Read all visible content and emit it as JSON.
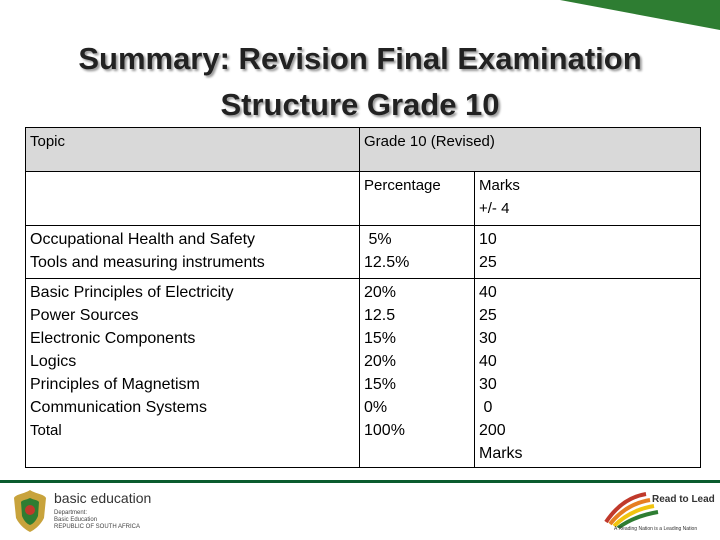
{
  "title": {
    "line1": "Summary: Revision Final Examination",
    "line2": "Structure Grade 10"
  },
  "table": {
    "topic_header": "Topic",
    "grade_header": "Grade 10 (Revised)",
    "percentage_header": "Percentage",
    "marks_header_line1": "Marks",
    "marks_header_line2": "+/- 4",
    "group1": {
      "topics": [
        "Occupational Health and Safety",
        "Tools and measuring instruments"
      ],
      "percentages": [
        " 5%",
        "12.5%"
      ],
      "marks": [
        "10",
        "25"
      ]
    },
    "group2": {
      "topics": [
        "Basic Principles of Electricity",
        "Power Sources",
        "Electronic Components",
        "Logics",
        "Principles of Magnetism",
        "Communication Systems"
      ],
      "total_label": "Total",
      "percentages": [
        "20%",
        "12.5",
        "15%",
        "20%",
        "15%",
        "0%",
        "100%"
      ],
      "marks": [
        "40",
        "25",
        "30",
        "40",
        "30",
        " 0",
        "200",
        "Marks"
      ]
    }
  },
  "footer": {
    "left_logo_name": "basic education",
    "left_logo_sub1": "Department:",
    "left_logo_sub2": "Basic Education",
    "left_logo_sub3": "REPUBLIC OF SOUTH AFRICA",
    "right_logo_name": "Read to Lead",
    "right_logo_tagline": "A Reading Nation is a Leading Nation"
  },
  "colors": {
    "accent_green": "#2e7d32",
    "header_gray": "#d9d9d9"
  }
}
